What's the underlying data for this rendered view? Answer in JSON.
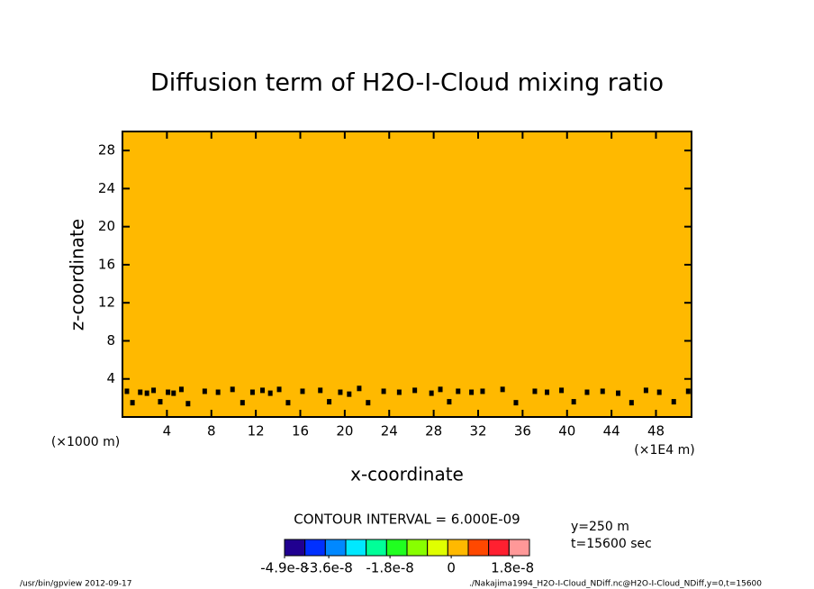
{
  "chart_data": {
    "type": "contour",
    "title": "Diffusion term of H2O-I-Cloud mixing ratio",
    "x_label": "x-coordinate",
    "y_label": "z-coordinate",
    "x_unit": "(×1E4 m)",
    "y_unit": "(×1000 m)",
    "xlim": [
      0,
      51.2
    ],
    "ylim": [
      0,
      30
    ],
    "xticks": [
      4,
      8,
      12,
      16,
      20,
      24,
      28,
      32,
      36,
      40,
      44,
      48
    ],
    "yticks": [
      4,
      8,
      12,
      16,
      20,
      24,
      28
    ],
    "fill_color": "#ffb900",
    "line_color": "#000000",
    "contour": {
      "x": [
        0.4,
        0.9,
        1.6,
        2.2,
        2.8,
        3.4,
        4.1,
        4.6,
        5.3,
        5.9,
        7.4,
        8.6,
        9.9,
        10.8,
        11.7,
        12.6,
        13.3,
        14.1,
        14.9,
        16.2,
        17.8,
        18.6,
        19.6,
        20.4,
        21.3,
        22.1,
        23.5,
        24.9,
        26.3,
        27.8,
        28.6,
        29.4,
        30.2,
        31.4,
        32.4,
        34.2,
        35.4,
        37.1,
        38.2,
        39.5,
        40.6,
        41.8,
        43.2,
        44.6,
        45.8,
        47.1,
        48.3,
        49.6,
        50.9
      ],
      "y": [
        2.7,
        1.5,
        2.6,
        2.5,
        2.8,
        1.6,
        2.6,
        2.5,
        2.9,
        1.4,
        2.7,
        2.6,
        2.9,
        1.5,
        2.6,
        2.8,
        2.5,
        2.9,
        1.5,
        2.7,
        2.8,
        1.6,
        2.6,
        2.4,
        3.0,
        1.5,
        2.7,
        2.6,
        2.8,
        2.5,
        2.9,
        1.6,
        2.7,
        2.6,
        2.7,
        2.9,
        1.5,
        2.7,
        2.6,
        2.8,
        1.6,
        2.6,
        2.7,
        2.5,
        1.5,
        2.8,
        2.6,
        1.6,
        2.7
      ]
    },
    "contour_interval": "CONTOUR INTERVAL = 6.000E-09",
    "annotations": [
      "y=250 m",
      "t=15600 sec"
    ],
    "colorbar": {
      "colors": [
        "#200090",
        "#0030ff",
        "#0088ff",
        "#00e8ff",
        "#00ff98",
        "#20ff20",
        "#88ff00",
        "#e0ff00",
        "#ffb900",
        "#ff4800",
        "#ff2030",
        "#ff9898"
      ],
      "clim": [
        -4.9e-08,
        2.3e-08
      ],
      "ticks": [
        -4.9e-08,
        -3.6e-08,
        -1.8e-08,
        0,
        1.8e-08
      ]
    }
  },
  "footer": {
    "left": "/usr/bin/gpview   2012-09-17",
    "right": "./Nakajima1994_H2O-I-Cloud_NDiff.nc@H2O-I-Cloud_NDiff,y=0,t=15600"
  }
}
